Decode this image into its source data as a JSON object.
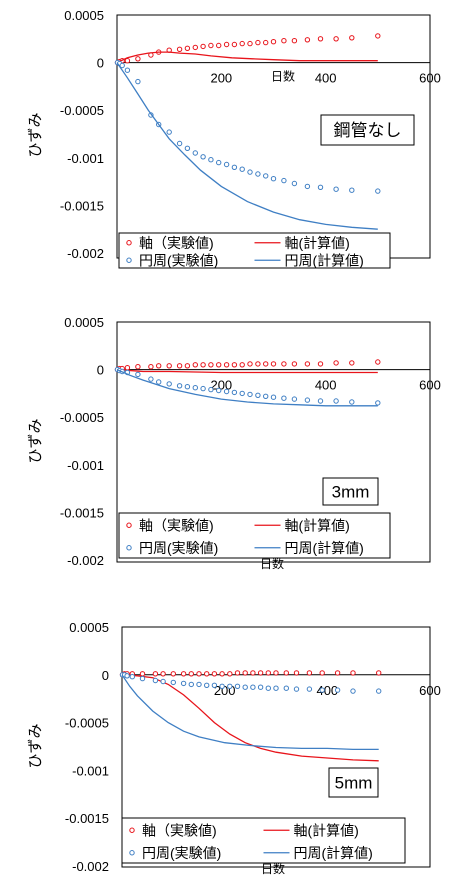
{
  "colors": {
    "axial": "#e8141b",
    "circumferential": "#3f7fc4"
  },
  "chart_data": [
    {
      "type": "scatter",
      "xlabel": "日数",
      "ylabel": "ひずみ",
      "xlim": [
        0,
        600
      ],
      "ylim": [
        -0.002,
        0.0005
      ],
      "x_ticks": [
        "200",
        "400",
        "600"
      ],
      "y_ticks": [
        "0.0005",
        "0",
        "-0.0005",
        "-0.001",
        "-0.0015",
        "-0.002"
      ],
      "tag": "鋼管なし",
      "grid": false,
      "legend": [
        "軸（実験値)",
        "軸(計算値)",
        "円周(実験値)",
        "円周(計算値)"
      ],
      "series": [
        {
          "name": "軸（実験値)",
          "kind": "markers",
          "color": "#e8141b",
          "x": [
            1,
            5,
            10,
            20,
            40,
            65,
            80,
            100,
            120,
            135,
            150,
            165,
            180,
            195,
            210,
            225,
            240,
            255,
            270,
            285,
            300,
            320,
            340,
            365,
            390,
            420,
            450,
            500
          ],
          "y": [
            0.0,
            1e-05,
            2e-05,
            2e-05,
            4e-05,
            8e-05,
            0.00011,
            0.00013,
            0.00014,
            0.00015,
            0.00016,
            0.00017,
            0.00018,
            0.00018,
            0.00019,
            0.00019,
            0.0002,
            0.0002,
            0.00021,
            0.00021,
            0.00022,
            0.00023,
            0.00023,
            0.00024,
            0.00025,
            0.00025,
            0.00026,
            0.00028
          ]
        },
        {
          "name": "軸(計算値)",
          "kind": "line",
          "color": "#e8141b",
          "x": [
            0,
            20,
            40,
            60,
            80,
            100,
            120,
            150,
            180,
            220,
            260,
            300,
            350,
            400,
            450,
            500
          ],
          "y": [
            0,
            5e-05,
            8e-05,
            0.0001,
            0.00011,
            0.00011,
            0.0001,
            9e-05,
            7e-05,
            5e-05,
            4e-05,
            3e-05,
            2e-05,
            2e-05,
            2e-05,
            2e-05
          ]
        },
        {
          "name": "円周(実験値)",
          "kind": "markers",
          "color": "#3f7fc4",
          "x": [
            1,
            5,
            10,
            20,
            40,
            65,
            80,
            100,
            120,
            135,
            150,
            165,
            180,
            195,
            210,
            225,
            240,
            255,
            270,
            285,
            300,
            320,
            340,
            365,
            390,
            420,
            450,
            500
          ],
          "y": [
            0.0,
            -1e-05,
            -3e-05,
            -8e-05,
            -0.0002,
            -0.00055,
            -0.00065,
            -0.00073,
            -0.00085,
            -0.0009,
            -0.00095,
            -0.00099,
            -0.00102,
            -0.00105,
            -0.00107,
            -0.0011,
            -0.00112,
            -0.00115,
            -0.00117,
            -0.00119,
            -0.00122,
            -0.00124,
            -0.00127,
            -0.0013,
            -0.00131,
            -0.00133,
            -0.00134,
            -0.00135
          ]
        },
        {
          "name": "円周(計算値)",
          "kind": "line",
          "color": "#3f7fc4",
          "x": [
            0,
            20,
            40,
            60,
            80,
            100,
            130,
            160,
            200,
            250,
            300,
            350,
            400,
            450,
            500
          ],
          "y": [
            0,
            -0.00016,
            -0.00033,
            -0.0005,
            -0.00065,
            -0.0008,
            -0.00097,
            -0.00113,
            -0.0013,
            -0.00146,
            -0.00157,
            -0.00165,
            -0.0017,
            -0.00173,
            -0.00175
          ]
        }
      ]
    },
    {
      "type": "scatter",
      "xlabel": "日数",
      "ylabel": "ひずみ",
      "xlim": [
        0,
        600
      ],
      "ylim": [
        -0.002,
        0.0005
      ],
      "x_ticks": [
        "200",
        "400",
        "600"
      ],
      "y_ticks": [
        "0.0005",
        "0",
        "-0.0005",
        "-0.001",
        "-0.0015",
        "-0.002"
      ],
      "tag": "3mm",
      "grid": false,
      "legend": [
        "軸（実験値)",
        "軸(計算値)",
        "円周(実験値)",
        "円周(計算値)"
      ],
      "series": [
        {
          "name": "軸（実験値)",
          "kind": "markers",
          "color": "#e8141b",
          "x": [
            1,
            5,
            10,
            20,
            40,
            65,
            80,
            100,
            120,
            135,
            150,
            165,
            180,
            195,
            210,
            225,
            240,
            255,
            270,
            285,
            300,
            320,
            340,
            365,
            390,
            420,
            450,
            500
          ],
          "y": [
            0.0,
            1e-05,
            1e-05,
            2e-05,
            3e-05,
            3e-05,
            4e-05,
            4e-05,
            4e-05,
            4e-05,
            5e-05,
            5e-05,
            5e-05,
            5e-05,
            5e-05,
            5e-05,
            5e-05,
            6e-05,
            6e-05,
            6e-05,
            6e-05,
            6e-05,
            6e-05,
            6e-05,
            6e-05,
            7e-05,
            7e-05,
            8e-05
          ]
        },
        {
          "name": "軸(計算値)",
          "kind": "line",
          "color": "#e8141b",
          "x": [
            0,
            50,
            100,
            200,
            300,
            400,
            500
          ],
          "y": [
            0,
            -2e-05,
            -2e-05,
            -3e-05,
            -3e-05,
            -3e-05,
            -3e-05
          ]
        },
        {
          "name": "円周(実験値)",
          "kind": "markers",
          "color": "#3f7fc4",
          "x": [
            1,
            5,
            10,
            20,
            40,
            65,
            80,
            100,
            120,
            135,
            150,
            165,
            180,
            195,
            210,
            225,
            240,
            255,
            270,
            285,
            300,
            320,
            340,
            365,
            390,
            420,
            450,
            500
          ],
          "y": [
            0.0,
            -1e-05,
            -2e-05,
            -3e-05,
            -5e-05,
            -0.0001,
            -0.00013,
            -0.00015,
            -0.00017,
            -0.00018,
            -0.00019,
            -0.0002,
            -0.00021,
            -0.00022,
            -0.00023,
            -0.00024,
            -0.00025,
            -0.00026,
            -0.00027,
            -0.00028,
            -0.00029,
            -0.0003,
            -0.00031,
            -0.00032,
            -0.00033,
            -0.00033,
            -0.00034,
            -0.00035
          ]
        },
        {
          "name": "円周(計算値)",
          "kind": "line",
          "color": "#3f7fc4",
          "x": [
            0,
            25,
            50,
            100,
            150,
            200,
            250,
            300,
            350,
            400,
            450,
            500
          ],
          "y": [
            0,
            -6e-05,
            -0.00011,
            -0.0002,
            -0.00026,
            -0.00031,
            -0.00034,
            -0.00036,
            -0.00037,
            -0.00038,
            -0.00038,
            -0.00038
          ]
        }
      ]
    },
    {
      "type": "scatter",
      "xlabel": "日数",
      "ylabel": "ひずみ",
      "xlim": [
        0,
        600
      ],
      "ylim": [
        -0.002,
        0.0005
      ],
      "x_ticks": [
        "200",
        "400",
        "600"
      ],
      "y_ticks": [
        "0.0005",
        "0",
        "-0.0005",
        "-0.001",
        "-0.0015",
        "-0.002"
      ],
      "tag": "5mm",
      "grid": false,
      "legend": [
        "軸（実験値)",
        "軸(計算値)",
        "円周(実験値)",
        "円周(計算値)"
      ],
      "series": [
        {
          "name": "軸（実験値)",
          "kind": "markers",
          "color": "#e8141b",
          "x": [
            1,
            5,
            10,
            20,
            40,
            65,
            80,
            100,
            120,
            135,
            150,
            165,
            180,
            195,
            210,
            225,
            240,
            255,
            270,
            285,
            300,
            320,
            340,
            365,
            390,
            420,
            450,
            500
          ],
          "y": [
            0.0,
            1e-05,
            1e-05,
            1e-05,
            1e-05,
            1e-05,
            1e-05,
            1e-05,
            1e-05,
            1e-05,
            1e-05,
            1e-05,
            1e-05,
            1e-05,
            1e-05,
            2e-05,
            2e-05,
            2e-05,
            2e-05,
            2e-05,
            2e-05,
            2e-05,
            2e-05,
            2e-05,
            2e-05,
            2e-05,
            2e-05,
            2e-05
          ]
        },
        {
          "name": "軸(計算値)",
          "kind": "line",
          "color": "#e8141b",
          "x": [
            0,
            30,
            60,
            90,
            120,
            150,
            180,
            210,
            240,
            270,
            300,
            350,
            400,
            450,
            500
          ],
          "y": [
            0,
            -1e-05,
            -3e-05,
            -0.0001,
            -0.00021,
            -0.00035,
            -0.0005,
            -0.00062,
            -0.00071,
            -0.00077,
            -0.00081,
            -0.00085,
            -0.00087,
            -0.00089,
            -0.0009
          ]
        },
        {
          "name": "円周(実験値)",
          "kind": "markers",
          "color": "#3f7fc4",
          "x": [
            1,
            5,
            10,
            20,
            40,
            65,
            80,
            100,
            120,
            135,
            150,
            165,
            180,
            195,
            210,
            225,
            240,
            255,
            270,
            285,
            300,
            320,
            340,
            365,
            390,
            420,
            450,
            500
          ],
          "y": [
            0.0,
            0.0,
            -1e-05,
            -2e-05,
            -4e-05,
            -6e-05,
            -7e-05,
            -8e-05,
            -9e-05,
            -0.0001,
            -0.0001,
            -0.00011,
            -0.00011,
            -0.00012,
            -0.00012,
            -0.00012,
            -0.00013,
            -0.00013,
            -0.00013,
            -0.00014,
            -0.00014,
            -0.00014,
            -0.00015,
            -0.00015,
            -0.00016,
            -0.00016,
            -0.00017,
            -0.00017
          ]
        },
        {
          "name": "円周(計算値)",
          "kind": "line",
          "color": "#3f7fc4",
          "x": [
            0,
            15,
            30,
            60,
            90,
            120,
            150,
            200,
            250,
            300,
            350,
            400,
            450,
            500
          ],
          "y": [
            0,
            -0.00012,
            -0.00022,
            -0.00038,
            -0.0005,
            -0.00059,
            -0.00065,
            -0.00071,
            -0.00074,
            -0.00076,
            -0.00077,
            -0.00077,
            -0.00078,
            -0.00078
          ]
        }
      ]
    }
  ]
}
